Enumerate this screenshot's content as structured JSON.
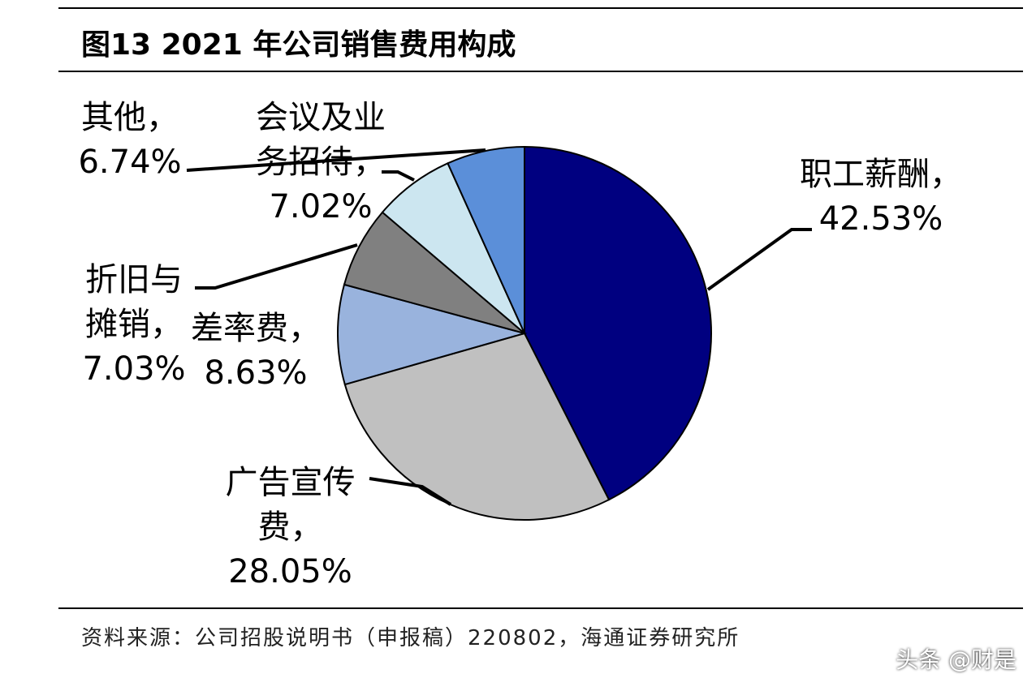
{
  "chart_data": {
    "type": "pie",
    "title": "图13 2021 年公司销售费用构成",
    "categories": [
      "职工薪酬，",
      "广告宣传费，",
      "差率费，",
      "折旧与摊销，",
      "会议及业务招待，",
      "其他，"
    ],
    "values": [
      42.53,
      28.05,
      8.63,
      7.03,
      7.02,
      6.74
    ],
    "value_labels": [
      "42.53%",
      "28.05%",
      "8.63%",
      "7.03%",
      "7.02%",
      "6.74%"
    ],
    "colors": [
      "#000080",
      "#c0c0c0",
      "#99b3dd",
      "#808080",
      "#cce6f0",
      "#5b8fd9"
    ],
    "source": "资料来源：公司招股说明书（申报稿）220802，海通证券研究所",
    "watermark": "头条 @财是"
  }
}
